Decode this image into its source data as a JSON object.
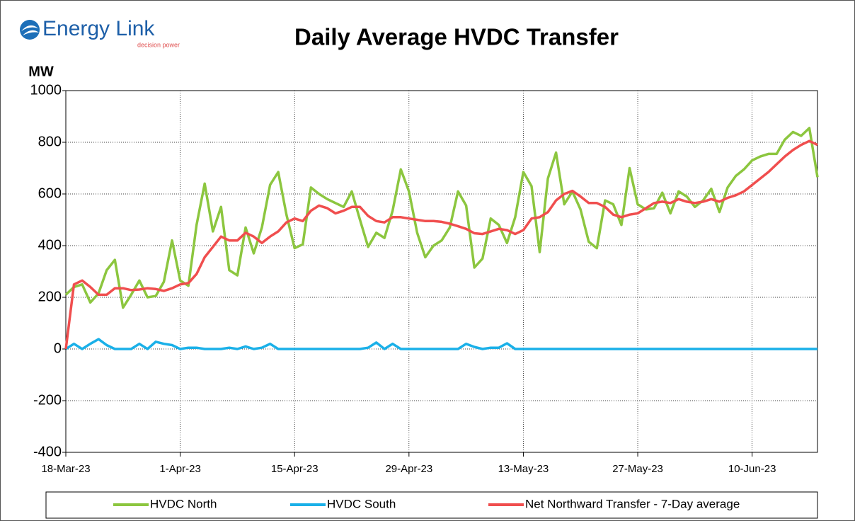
{
  "logo": {
    "name": "Energy Link",
    "tagline": "decision power"
  },
  "chart_data": {
    "type": "line",
    "title": "Daily Average HVDC Transfer",
    "y_label": "MW",
    "categories": [
      "18-Mar-23",
      null,
      null,
      null,
      null,
      null,
      null,
      null,
      null,
      null,
      null,
      null,
      null,
      null,
      "1-Apr-23",
      null,
      null,
      null,
      null,
      null,
      null,
      null,
      null,
      null,
      null,
      null,
      null,
      null,
      "15-Apr-23",
      null,
      null,
      null,
      null,
      null,
      null,
      null,
      null,
      null,
      null,
      null,
      null,
      null,
      "29-Apr-23",
      null,
      null,
      null,
      null,
      null,
      null,
      null,
      null,
      null,
      null,
      null,
      null,
      null,
      "13-May-23",
      null,
      null,
      null,
      null,
      null,
      null,
      null,
      null,
      null,
      null,
      null,
      null,
      null,
      "27-May-23",
      null,
      null,
      null,
      null,
      null,
      null,
      null,
      null,
      null,
      null,
      null,
      null,
      null,
      "10-Jun-23",
      null,
      null,
      null,
      null,
      null,
      null,
      null,
      null
    ],
    "series": [
      {
        "name": "HVDC North",
        "color": "#8cc63f",
        "values": [
          210,
          240,
          250,
          180,
          215,
          305,
          345,
          160,
          210,
          265,
          200,
          205,
          260,
          420,
          265,
          245,
          480,
          640,
          455,
          550,
          305,
          285,
          470,
          370,
          470,
          635,
          685,
          520,
          390,
          405,
          625,
          600,
          580,
          565,
          550,
          610,
          500,
          395,
          450,
          430,
          535,
          695,
          610,
          450,
          355,
          400,
          420,
          470,
          610,
          555,
          315,
          350,
          505,
          480,
          410,
          510,
          685,
          630,
          375,
          660,
          760,
          560,
          610,
          540,
          415,
          390,
          575,
          560,
          480,
          700,
          560,
          540,
          545,
          605,
          525,
          610,
          590,
          550,
          575,
          620,
          530,
          625,
          670,
          695,
          730,
          745,
          755,
          755,
          810,
          840,
          825,
          855,
          665
        ]
      },
      {
        "name": "HVDC South",
        "color": "#1ab0e8",
        "values": [
          0,
          20,
          0,
          20,
          38,
          15,
          0,
          0,
          0,
          20,
          0,
          28,
          20,
          15,
          0,
          5,
          5,
          0,
          0,
          0,
          5,
          0,
          10,
          0,
          5,
          20,
          0,
          0,
          0,
          0,
          0,
          0,
          0,
          0,
          0,
          0,
          0,
          5,
          25,
          0,
          20,
          0,
          0,
          0,
          0,
          0,
          0,
          0,
          0,
          20,
          8,
          0,
          5,
          5,
          22,
          0,
          0,
          0,
          0,
          0,
          0,
          0,
          0,
          0,
          0,
          0,
          0,
          0,
          0,
          0,
          0,
          0,
          0,
          0,
          0,
          0,
          0,
          0,
          0,
          0,
          0,
          0,
          0,
          0,
          0,
          0,
          0,
          0,
          0,
          0,
          0,
          0,
          0
        ]
      },
      {
        "name": "Net Northward Transfer - 7-Day average",
        "color": "#f04e4e",
        "values": [
          0,
          250,
          265,
          240,
          210,
          210,
          235,
          235,
          228,
          230,
          235,
          232,
          225,
          235,
          250,
          255,
          290,
          355,
          395,
          435,
          420,
          420,
          450,
          435,
          410,
          435,
          455,
          490,
          505,
          495,
          535,
          555,
          545,
          525,
          535,
          550,
          550,
          515,
          495,
          490,
          510,
          510,
          505,
          500,
          495,
          495,
          492,
          485,
          475,
          465,
          448,
          445,
          455,
          465,
          460,
          445,
          460,
          505,
          510,
          530,
          575,
          600,
          612,
          590,
          565,
          565,
          550,
          520,
          510,
          520,
          525,
          545,
          565,
          570,
          565,
          580,
          570,
          565,
          570,
          580,
          570,
          585,
          595,
          610,
          635,
          660,
          685,
          715,
          745,
          770,
          790,
          805,
          790
        ]
      }
    ],
    "ylim": [
      -400,
      1000
    ],
    "yticks": [
      -400,
      -200,
      0,
      200,
      400,
      600,
      800,
      1000
    ],
    "grid": true
  }
}
